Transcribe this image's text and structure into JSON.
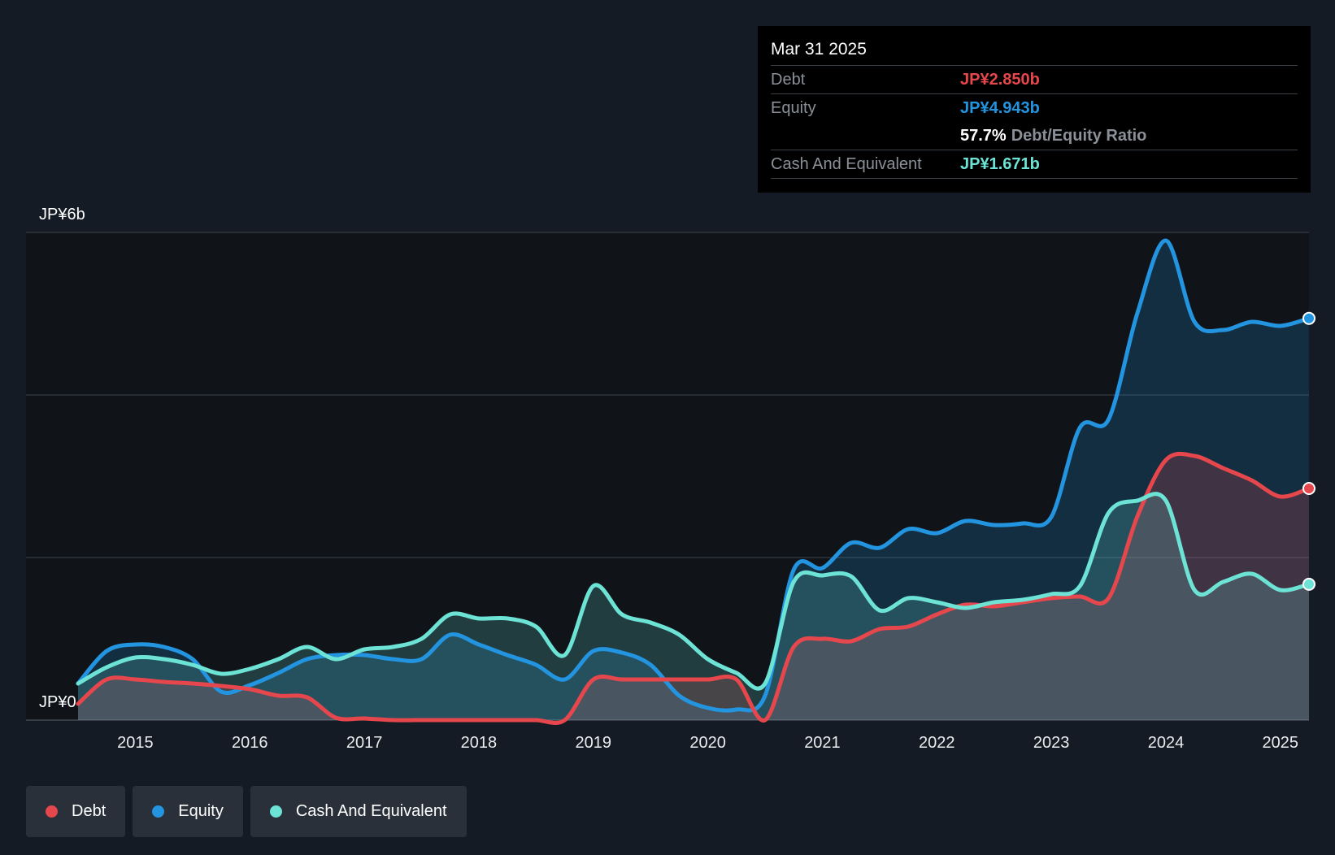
{
  "tooltip": {
    "date": "Mar 31 2025",
    "debt_label": "Debt",
    "debt_value": "JP¥2.850b",
    "equity_label": "Equity",
    "equity_value": "JP¥4.943b",
    "ratio_value": "57.7%",
    "ratio_label": "Debt/Equity Ratio",
    "cash_label": "Cash And Equivalent",
    "cash_value": "JP¥1.671b"
  },
  "legend": [
    {
      "label": "Debt",
      "color": "#e5474d"
    },
    {
      "label": "Equity",
      "color": "#2394df"
    },
    {
      "label": "Cash And Equivalent",
      "color": "#6ce3d5"
    }
  ],
  "chart_data": {
    "type": "area",
    "y_unit": "JP¥ billions",
    "ylim": [
      0,
      6
    ],
    "xlim": [
      2014.5,
      2025.25
    ],
    "y_tick_labels": [
      {
        "value": 6,
        "label": "JP¥6b"
      },
      {
        "value": 0,
        "label": "JP¥0"
      }
    ],
    "gridlines": [
      0,
      2,
      4,
      6
    ],
    "x_ticks": [
      2015,
      2016,
      2017,
      2018,
      2019,
      2020,
      2021,
      2022,
      2023,
      2024,
      2025
    ],
    "x_tick_labels": [
      "2015",
      "2016",
      "2017",
      "2018",
      "2019",
      "2020",
      "2021",
      "2022",
      "2023",
      "2024",
      "2025"
    ],
    "legend_position": "bottom-left",
    "series": [
      {
        "name": "Equity",
        "color": "#2394df",
        "points": [
          [
            2014.5,
            0.45
          ],
          [
            2014.75,
            0.85
          ],
          [
            2015.0,
            0.93
          ],
          [
            2015.25,
            0.9
          ],
          [
            2015.5,
            0.75
          ],
          [
            2015.75,
            0.35
          ],
          [
            2016.0,
            0.43
          ],
          [
            2016.25,
            0.58
          ],
          [
            2016.5,
            0.75
          ],
          [
            2016.75,
            0.8
          ],
          [
            2017.0,
            0.8
          ],
          [
            2017.25,
            0.75
          ],
          [
            2017.5,
            0.75
          ],
          [
            2017.75,
            1.05
          ],
          [
            2018.0,
            0.93
          ],
          [
            2018.25,
            0.8
          ],
          [
            2018.5,
            0.68
          ],
          [
            2018.75,
            0.5
          ],
          [
            2019.0,
            0.85
          ],
          [
            2019.25,
            0.83
          ],
          [
            2019.5,
            0.68
          ],
          [
            2019.75,
            0.3
          ],
          [
            2020.0,
            0.15
          ],
          [
            2020.25,
            0.13
          ],
          [
            2020.5,
            0.3
          ],
          [
            2020.75,
            1.85
          ],
          [
            2021.0,
            1.87
          ],
          [
            2021.25,
            2.18
          ],
          [
            2021.5,
            2.12
          ],
          [
            2021.75,
            2.35
          ],
          [
            2022.0,
            2.3
          ],
          [
            2022.25,
            2.45
          ],
          [
            2022.5,
            2.4
          ],
          [
            2022.75,
            2.42
          ],
          [
            2023.0,
            2.5
          ],
          [
            2023.25,
            3.6
          ],
          [
            2023.5,
            3.7
          ],
          [
            2023.75,
            5.0
          ],
          [
            2024.0,
            5.9
          ],
          [
            2024.25,
            4.9
          ],
          [
            2024.5,
            4.8
          ],
          [
            2024.75,
            4.9
          ],
          [
            2025.0,
            4.85
          ],
          [
            2025.25,
            4.943
          ]
        ]
      },
      {
        "name": "Debt",
        "color": "#e5474d",
        "points": [
          [
            2014.5,
            0.2
          ],
          [
            2014.75,
            0.5
          ],
          [
            2015.0,
            0.5
          ],
          [
            2015.25,
            0.47
          ],
          [
            2015.5,
            0.45
          ],
          [
            2015.75,
            0.42
          ],
          [
            2016.0,
            0.38
          ],
          [
            2016.25,
            0.3
          ],
          [
            2016.5,
            0.28
          ],
          [
            2016.75,
            0.03
          ],
          [
            2017.0,
            0.02
          ],
          [
            2017.25,
            0.0
          ],
          [
            2017.5,
            0.0
          ],
          [
            2017.75,
            0.0
          ],
          [
            2018.0,
            0.0
          ],
          [
            2018.25,
            0.0
          ],
          [
            2018.5,
            0.0
          ],
          [
            2018.75,
            0.0
          ],
          [
            2019.0,
            0.5
          ],
          [
            2019.25,
            0.5
          ],
          [
            2019.5,
            0.5
          ],
          [
            2019.75,
            0.5
          ],
          [
            2020.0,
            0.5
          ],
          [
            2020.25,
            0.5
          ],
          [
            2020.5,
            0.0
          ],
          [
            2020.75,
            0.9
          ],
          [
            2021.0,
            1.0
          ],
          [
            2021.25,
            0.97
          ],
          [
            2021.5,
            1.12
          ],
          [
            2021.75,
            1.15
          ],
          [
            2022.0,
            1.3
          ],
          [
            2022.25,
            1.42
          ],
          [
            2022.5,
            1.4
          ],
          [
            2022.75,
            1.45
          ],
          [
            2023.0,
            1.5
          ],
          [
            2023.25,
            1.52
          ],
          [
            2023.5,
            1.5
          ],
          [
            2023.75,
            2.5
          ],
          [
            2024.0,
            3.2
          ],
          [
            2024.25,
            3.25
          ],
          [
            2024.5,
            3.1
          ],
          [
            2024.75,
            2.95
          ],
          [
            2025.0,
            2.75
          ],
          [
            2025.25,
            2.85
          ]
        ]
      },
      {
        "name": "Cash And Equivalent",
        "color": "#6ce3d5",
        "points": [
          [
            2014.5,
            0.45
          ],
          [
            2014.75,
            0.65
          ],
          [
            2015.0,
            0.77
          ],
          [
            2015.25,
            0.75
          ],
          [
            2015.5,
            0.68
          ],
          [
            2015.75,
            0.57
          ],
          [
            2016.0,
            0.63
          ],
          [
            2016.25,
            0.75
          ],
          [
            2016.5,
            0.9
          ],
          [
            2016.75,
            0.75
          ],
          [
            2017.0,
            0.87
          ],
          [
            2017.25,
            0.9
          ],
          [
            2017.5,
            1.0
          ],
          [
            2017.75,
            1.3
          ],
          [
            2018.0,
            1.25
          ],
          [
            2018.25,
            1.25
          ],
          [
            2018.5,
            1.15
          ],
          [
            2018.75,
            0.8
          ],
          [
            2019.0,
            1.65
          ],
          [
            2019.25,
            1.3
          ],
          [
            2019.5,
            1.2
          ],
          [
            2019.75,
            1.05
          ],
          [
            2020.0,
            0.75
          ],
          [
            2020.25,
            0.58
          ],
          [
            2020.5,
            0.45
          ],
          [
            2020.75,
            1.7
          ],
          [
            2021.0,
            1.78
          ],
          [
            2021.25,
            1.77
          ],
          [
            2021.5,
            1.35
          ],
          [
            2021.75,
            1.5
          ],
          [
            2022.0,
            1.45
          ],
          [
            2022.25,
            1.38
          ],
          [
            2022.5,
            1.45
          ],
          [
            2022.75,
            1.48
          ],
          [
            2023.0,
            1.55
          ],
          [
            2023.25,
            1.65
          ],
          [
            2023.5,
            2.55
          ],
          [
            2023.75,
            2.7
          ],
          [
            2024.0,
            2.7
          ],
          [
            2024.25,
            1.6
          ],
          [
            2024.5,
            1.7
          ],
          [
            2024.75,
            1.8
          ],
          [
            2025.0,
            1.6
          ],
          [
            2025.25,
            1.671
          ]
        ]
      }
    ]
  }
}
